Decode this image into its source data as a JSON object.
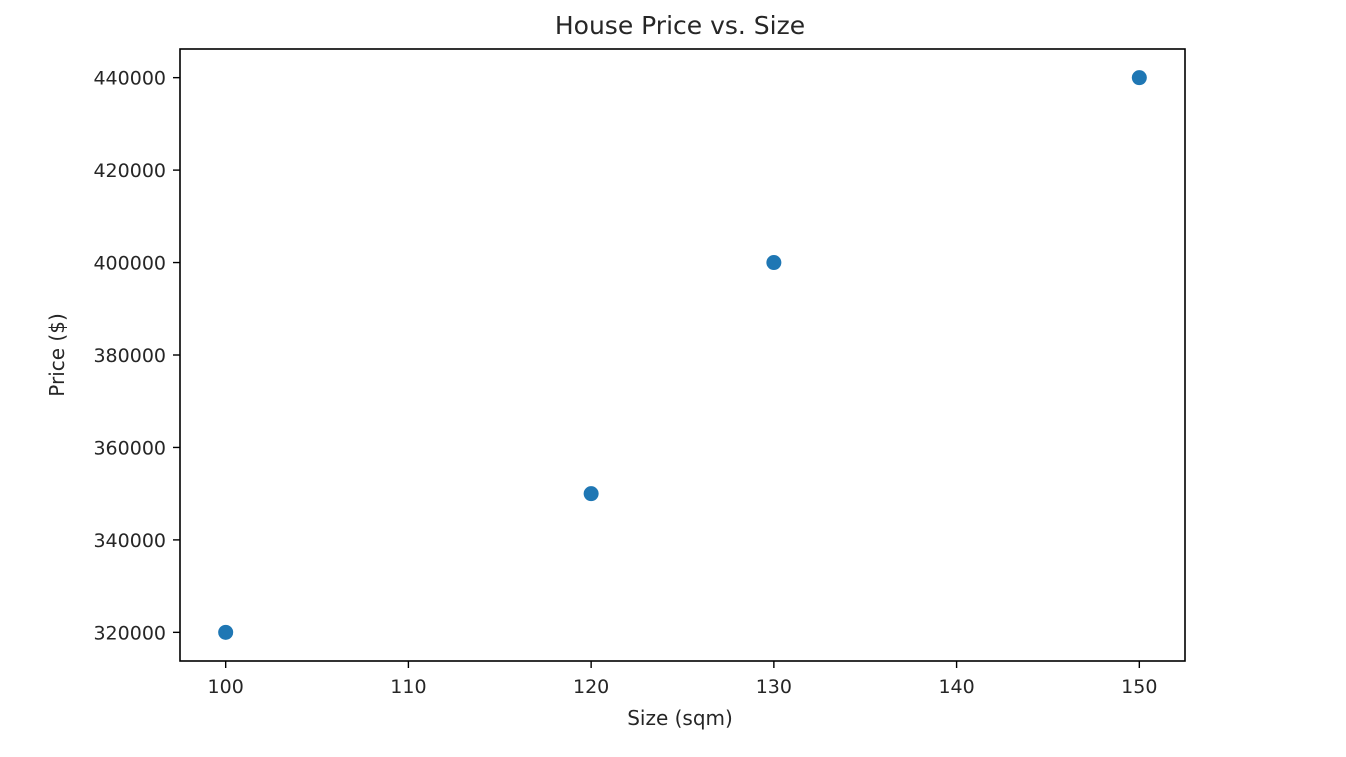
{
  "chart_data": {
    "type": "scatter",
    "title": "House Price vs. Size",
    "xlabel": "Size (sqm)",
    "ylabel": "Price ($)",
    "x": [
      100,
      120,
      130,
      150
    ],
    "y": [
      320000,
      350000,
      400000,
      440000
    ],
    "xlim": [
      97.5,
      152.5
    ],
    "ylim": [
      313800,
      446200
    ],
    "xticks": [
      100,
      110,
      120,
      130,
      140,
      150
    ],
    "yticks": [
      320000,
      340000,
      360000,
      380000,
      400000,
      420000,
      440000
    ],
    "marker_color": "#1f77b4",
    "grid": false,
    "legend": "none"
  }
}
